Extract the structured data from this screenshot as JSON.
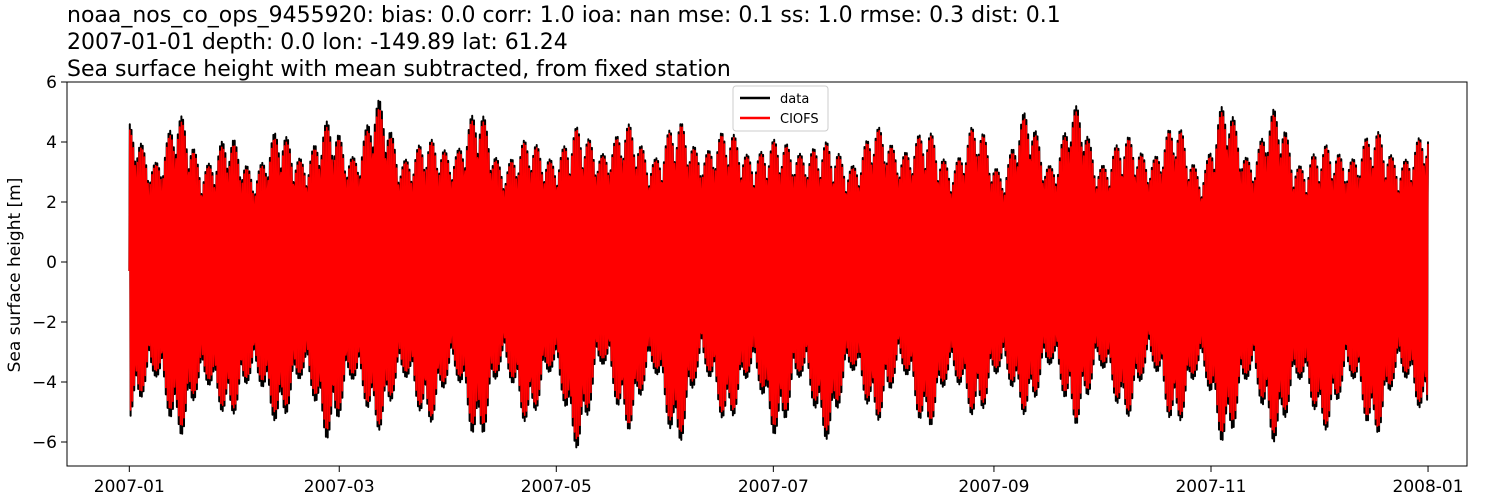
{
  "chart_data": {
    "type": "line",
    "title_lines": [
      "noaa_nos_co_ops_9455920: bias: 0.0  corr: 1.0  ioa: nan  mse: 0.1  ss: 1.0  rmse: 0.3  dist: 0.1",
      "2007-01-01 depth: 0.0 lon: -149.89 lat: 61.24",
      "Sea surface height with mean subtracted, from fixed station"
    ],
    "ylabel": "Sea surface height [m]",
    "xlabel": "",
    "x_range": [
      "2007-01-01",
      "2008-01-01"
    ],
    "ylim": [
      -6.8,
      6.0
    ],
    "y_ticks": [
      -6,
      -4,
      -2,
      0,
      2,
      4,
      6
    ],
    "x_ticks": [
      "2007-01",
      "2007-03",
      "2007-05",
      "2007-07",
      "2007-09",
      "2007-11",
      "2008-01"
    ],
    "legend_position": "upper-center",
    "grid": false,
    "series": [
      {
        "name": "data",
        "color": "#000000",
        "envelope": {
          "x": [
            "2007-01-01",
            "2007-01-08",
            "2007-01-15",
            "2007-01-22",
            "2007-01-29",
            "2007-02-05",
            "2007-02-12",
            "2007-02-19",
            "2007-02-26",
            "2007-03-05",
            "2007-03-12",
            "2007-03-19",
            "2007-03-26",
            "2007-04-02",
            "2007-04-09",
            "2007-04-16",
            "2007-04-23",
            "2007-04-30",
            "2007-05-07",
            "2007-05-14",
            "2007-05-21",
            "2007-05-28",
            "2007-06-04",
            "2007-06-11",
            "2007-06-18",
            "2007-06-25",
            "2007-07-02",
            "2007-07-09",
            "2007-07-16",
            "2007-07-23",
            "2007-07-30",
            "2007-08-06",
            "2007-08-13",
            "2007-08-20",
            "2007-08-27",
            "2007-09-03",
            "2007-09-10",
            "2007-09-17",
            "2007-09-24",
            "2007-10-01",
            "2007-10-08",
            "2007-10-15",
            "2007-10-22",
            "2007-10-29",
            "2007-11-05",
            "2007-11-12",
            "2007-11-19",
            "2007-11-26",
            "2007-12-03",
            "2007-12-10",
            "2007-12-17",
            "2007-12-24",
            "2008-01-01"
          ],
          "max": [
            4.6,
            3.3,
            4.9,
            3.2,
            4.2,
            3.0,
            4.4,
            3.4,
            4.7,
            3.5,
            5.4,
            3.4,
            4.1,
            3.6,
            5.1,
            3.2,
            4.1,
            3.4,
            4.5,
            3.6,
            4.6,
            3.4,
            4.7,
            3.6,
            4.4,
            3.5,
            4.1,
            3.6,
            4.0,
            3.2,
            4.5,
            3.6,
            4.4,
            3.2,
            4.6,
            3.0,
            5.0,
            3.2,
            5.2,
            3.2,
            4.2,
            3.4,
            4.6,
            3.0,
            5.3,
            3.4,
            5.1,
            3.2,
            3.9,
            3.4,
            4.4,
            3.3,
            4.4
          ],
          "min": [
            -5.2,
            -3.8,
            -5.8,
            -4.0,
            -5.2,
            -3.8,
            -5.4,
            -3.8,
            -5.9,
            -3.9,
            -5.6,
            -3.8,
            -5.4,
            -3.7,
            -6.0,
            -3.5,
            -5.4,
            -3.6,
            -6.2,
            -3.4,
            -5.6,
            -3.6,
            -6.1,
            -3.5,
            -5.4,
            -3.7,
            -5.8,
            -3.8,
            -5.9,
            -3.6,
            -5.3,
            -3.6,
            -5.6,
            -3.8,
            -5.2,
            -3.6,
            -5.1,
            -3.4,
            -5.4,
            -3.5,
            -5.2,
            -3.4,
            -5.5,
            -3.6,
            -6.1,
            -3.8,
            -6.0,
            -3.9,
            -5.6,
            -3.8,
            -5.8,
            -3.7,
            -5.2
          ]
        }
      },
      {
        "name": "CIOFS",
        "color": "#ff0000",
        "envelope": {
          "x": [
            "2007-01-01",
            "2007-01-08",
            "2007-01-15",
            "2007-01-22",
            "2007-01-29",
            "2007-02-05",
            "2007-02-12",
            "2007-02-19",
            "2007-02-26",
            "2007-03-05",
            "2007-03-12",
            "2007-03-19",
            "2007-03-26",
            "2007-04-02",
            "2007-04-09",
            "2007-04-16",
            "2007-04-23",
            "2007-04-30",
            "2007-05-07",
            "2007-05-14",
            "2007-05-21",
            "2007-05-28",
            "2007-06-04",
            "2007-06-11",
            "2007-06-18",
            "2007-06-25",
            "2007-07-02",
            "2007-07-09",
            "2007-07-16",
            "2007-07-23",
            "2007-07-30",
            "2007-08-06",
            "2007-08-13",
            "2007-08-20",
            "2007-08-27",
            "2007-09-03",
            "2007-09-10",
            "2007-09-17",
            "2007-09-24",
            "2007-10-01",
            "2007-10-08",
            "2007-10-15",
            "2007-10-22",
            "2007-10-29",
            "2007-11-05",
            "2007-11-12",
            "2007-11-19",
            "2007-11-26",
            "2007-12-03",
            "2007-12-10",
            "2007-12-17",
            "2007-12-24",
            "2008-01-01"
          ],
          "max": [
            4.4,
            3.2,
            4.7,
            3.1,
            4.0,
            2.9,
            4.2,
            3.3,
            4.5,
            3.4,
            5.1,
            3.3,
            4.0,
            3.5,
            4.9,
            3.1,
            4.0,
            3.3,
            4.4,
            3.5,
            4.5,
            3.3,
            4.6,
            3.5,
            4.3,
            3.4,
            4.0,
            3.5,
            3.9,
            3.1,
            4.4,
            3.5,
            4.3,
            3.1,
            4.5,
            2.9,
            4.8,
            3.1,
            5.0,
            3.1,
            4.1,
            3.3,
            4.5,
            2.9,
            5.1,
            3.3,
            4.9,
            3.1,
            3.8,
            3.3,
            4.3,
            3.2,
            4.3
          ],
          "min": [
            -5.0,
            -3.6,
            -5.5,
            -3.8,
            -5.0,
            -3.6,
            -5.1,
            -3.6,
            -5.6,
            -3.7,
            -5.4,
            -3.6,
            -5.2,
            -3.5,
            -5.7,
            -3.3,
            -5.2,
            -3.4,
            -5.9,
            -3.2,
            -5.4,
            -3.4,
            -5.8,
            -3.3,
            -5.2,
            -3.5,
            -5.5,
            -3.6,
            -5.6,
            -3.4,
            -5.1,
            -3.4,
            -5.4,
            -3.6,
            -5.0,
            -3.4,
            -4.9,
            -3.2,
            -5.2,
            -3.3,
            -5.0,
            -3.2,
            -5.3,
            -3.4,
            -5.8,
            -3.6,
            -5.7,
            -3.7,
            -5.4,
            -3.6,
            -5.6,
            -3.5,
            -5.0
          ]
        }
      }
    ]
  }
}
